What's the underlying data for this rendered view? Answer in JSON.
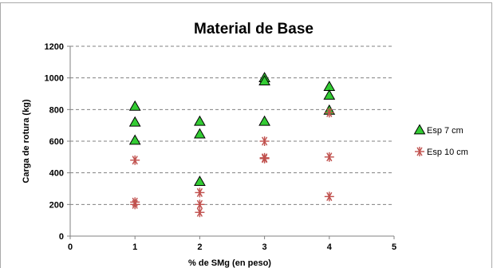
{
  "chart_data": {
    "type": "scatter",
    "title": "Material de Base",
    "xlabel": "% de SMg (en peso)",
    "ylabel": "Carga de rotura (kg)",
    "xlim": [
      0,
      5
    ],
    "ylim": [
      0,
      1200
    ],
    "x_ticks": [
      0,
      1,
      2,
      3,
      4,
      5
    ],
    "y_ticks": [
      0,
      200,
      400,
      600,
      800,
      1000,
      1200
    ],
    "grid": "horizontal-dashed",
    "legend_position": "right",
    "series": [
      {
        "name": "Esp 7 cm",
        "marker": "triangle",
        "color": "#33cc33",
        "points": [
          [
            1,
            820
          ],
          [
            1,
            720
          ],
          [
            1,
            605
          ],
          [
            2,
            725
          ],
          [
            2,
            645
          ],
          [
            2,
            345
          ],
          [
            3,
            1000
          ],
          [
            3,
            980
          ],
          [
            3,
            725
          ],
          [
            4,
            945
          ],
          [
            4,
            890
          ],
          [
            4,
            795
          ]
        ]
      },
      {
        "name": "Esp 10 cm",
        "marker": "asterisk",
        "color": "#c0504d",
        "points": [
          [
            1,
            480
          ],
          [
            1,
            215
          ],
          [
            1,
            200
          ],
          [
            2,
            275
          ],
          [
            2,
            200
          ],
          [
            2,
            150
          ],
          [
            3,
            600
          ],
          [
            3,
            490
          ],
          [
            3,
            495
          ],
          [
            4,
            780
          ],
          [
            4,
            500
          ],
          [
            4,
            250
          ]
        ]
      }
    ]
  }
}
